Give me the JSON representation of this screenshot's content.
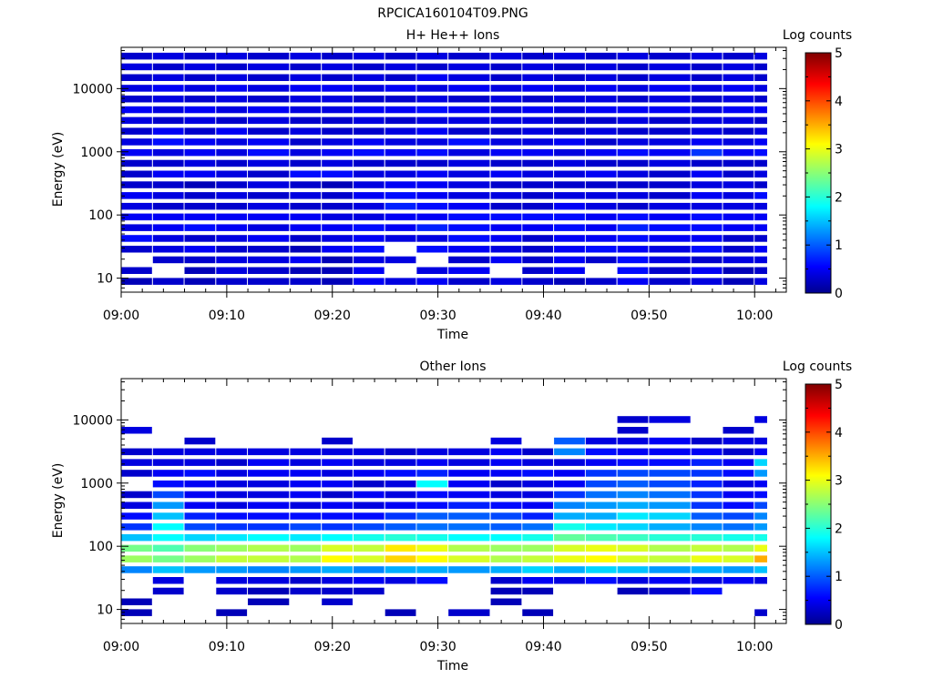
{
  "figure": {
    "title": "RPCICA160104T09.PNG"
  },
  "chart_data": [
    {
      "type": "heatmap",
      "title": "H+ He++ Ions",
      "xlabel": "Time",
      "ylabel": "Energy (eV)",
      "x_tick_labels": [
        "09:00",
        "09:10",
        "09:20",
        "09:30",
        "09:40",
        "09:50",
        "10:00"
      ],
      "x": [
        "09:00",
        "09:03",
        "09:06",
        "09:09",
        "09:12",
        "09:16",
        "09:19",
        "09:22",
        "09:25",
        "09:28",
        "09:31",
        "09:35",
        "09:38",
        "09:41",
        "09:44",
        "09:47",
        "09:50",
        "09:54",
        "09:57",
        "10:00"
      ],
      "xlim": [
        "09:00",
        "10:03"
      ],
      "y_scale": "log",
      "y_tick_labels": [
        "10",
        "100",
        "1000",
        "10000"
      ],
      "ylim": [
        6,
        45000
      ],
      "energy_bins_eV": [
        8.9,
        13.2,
        19.5,
        28.8,
        42.6,
        63,
        93,
        137,
        203,
        300,
        444,
        656,
        970,
        1434,
        2119,
        3132,
        4630,
        6844,
        10117,
        14955,
        22107,
        32679
      ],
      "colorbar": {
        "label": "Log counts",
        "range": [
          0,
          5
        ],
        "tick_labels": [
          "0",
          "1",
          "2",
          "3",
          "4",
          "5"
        ]
      },
      "log_counts_matrix": [
        [
          0.2,
          0.3,
          0.2,
          0.3,
          0.3,
          0.3,
          0.2,
          0.5,
          0.4,
          0.5,
          0.3,
          0.4,
          0.3,
          0.2,
          0.3,
          0.5,
          0.3,
          0.4,
          0.2,
          0.4
        ],
        [
          0.3,
          null,
          0.2,
          0.4,
          0.3,
          0.2,
          0.2,
          0.5,
          null,
          0.4,
          0.5,
          null,
          0.3,
          0.5,
          null,
          0.6,
          0.3,
          0.5,
          0.2,
          0.3
        ],
        [
          null,
          0.3,
          0.3,
          0.4,
          0.4,
          0.5,
          0.2,
          0.4,
          0.4,
          null,
          0.3,
          0.5,
          0.3,
          0.5,
          0.3,
          0.6,
          0.4,
          0.3,
          0.4,
          0.4
        ],
        [
          0.3,
          0.4,
          0.5,
          0.3,
          0.3,
          0.2,
          0.5,
          0.6,
          null,
          0.6,
          0.5,
          0.4,
          0.3,
          0.5,
          0.6,
          0.5,
          0.4,
          0.6,
          0.3,
          0.5
        ],
        [
          0.6,
          0.4,
          0.3,
          0.4,
          0.5,
          0.3,
          0.4,
          0.5,
          0.4,
          0.4,
          0.6,
          0.5,
          0.3,
          0.5,
          0.5,
          0.6,
          0.5,
          0.5,
          0.3,
          0.3
        ],
        [
          0.4,
          0.5,
          0.6,
          0.5,
          0.4,
          0.5,
          0.5,
          0.6,
          0.5,
          0.7,
          0.6,
          0.5,
          0.5,
          0.6,
          0.5,
          0.7,
          0.6,
          0.6,
          0.5,
          0.5
        ],
        [
          0.5,
          0.5,
          0.5,
          0.5,
          0.5,
          0.5,
          0.4,
          0.4,
          0.5,
          0.5,
          0.6,
          0.6,
          0.6,
          0.6,
          0.5,
          0.6,
          0.5,
          0.6,
          0.5,
          0.5
        ],
        [
          0.4,
          0.3,
          0.3,
          0.3,
          0.4,
          0.3,
          0.3,
          0.4,
          0.7,
          0.6,
          0.5,
          0.3,
          0.3,
          0.5,
          0.4,
          0.3,
          0.4,
          0.4,
          0.4,
          0.4
        ],
        [
          0.5,
          0.4,
          0.3,
          0.4,
          0.3,
          0.4,
          0.3,
          0.5,
          0.6,
          0.5,
          0.4,
          0.4,
          0.3,
          0.4,
          0.4,
          0.4,
          0.3,
          0.5,
          0.4,
          0.6
        ],
        [
          0.3,
          0.3,
          0.2,
          0.3,
          0.4,
          0.3,
          0.2,
          0.4,
          0.5,
          0.5,
          0.4,
          0.3,
          0.3,
          0.3,
          0.3,
          0.3,
          0.3,
          0.4,
          0.4,
          0.3
        ],
        [
          0.3,
          0.5,
          0.5,
          0.4,
          0.3,
          0.6,
          0.6,
          0.4,
          0.4,
          0.5,
          0.4,
          0.5,
          0.4,
          0.4,
          0.5,
          0.4,
          0.3,
          0.5,
          0.3,
          0.4
        ],
        [
          0.3,
          0.3,
          0.4,
          0.3,
          0.4,
          0.3,
          0.4,
          0.3,
          0.3,
          0.3,
          0.4,
          0.3,
          0.3,
          0.4,
          0.3,
          0.3,
          0.4,
          0.3,
          0.3,
          0.3
        ],
        [
          0.5,
          0.4,
          0.5,
          0.4,
          0.6,
          0.4,
          0.5,
          0.6,
          0.5,
          0.6,
          0.4,
          0.5,
          0.5,
          0.4,
          0.5,
          0.6,
          0.5,
          0.8,
          0.5,
          0.6
        ],
        [
          0.4,
          0.6,
          0.5,
          0.4,
          0.5,
          0.3,
          0.4,
          0.5,
          0.4,
          0.4,
          0.6,
          0.4,
          0.4,
          0.5,
          0.3,
          0.4,
          0.4,
          0.5,
          0.4,
          0.5
        ],
        [
          0.3,
          0.5,
          0.3,
          0.5,
          0.3,
          0.4,
          0.3,
          0.3,
          0.4,
          0.5,
          0.3,
          0.3,
          0.4,
          0.3,
          0.4,
          0.3,
          0.3,
          0.4,
          0.3,
          0.4
        ],
        [
          0.4,
          0.3,
          0.4,
          0.3,
          0.4,
          0.3,
          0.3,
          0.4,
          0.3,
          0.4,
          0.4,
          0.4,
          0.4,
          0.3,
          0.3,
          0.4,
          0.3,
          0.4,
          0.4,
          0.3
        ],
        [
          0.5,
          0.4,
          0.5,
          0.4,
          0.5,
          0.4,
          0.4,
          0.5,
          0.5,
          0.6,
          0.5,
          0.4,
          0.5,
          0.4,
          0.5,
          0.5,
          0.5,
          0.4,
          0.5,
          0.5
        ],
        [
          0.3,
          0.4,
          0.3,
          0.4,
          0.3,
          0.4,
          0.4,
          0.3,
          0.3,
          0.4,
          0.3,
          0.4,
          0.3,
          0.4,
          0.4,
          0.3,
          0.4,
          0.3,
          0.4,
          0.3
        ],
        [
          0.4,
          0.5,
          0.4,
          0.5,
          0.4,
          0.5,
          0.5,
          0.4,
          0.5,
          0.4,
          0.5,
          0.4,
          0.5,
          0.4,
          0.5,
          0.4,
          0.5,
          0.4,
          0.5,
          0.4
        ],
        [
          0.3,
          0.4,
          0.3,
          0.4,
          0.3,
          0.4,
          0.3,
          0.4,
          0.3,
          0.5,
          0.4,
          0.3,
          0.4,
          0.3,
          0.4,
          0.3,
          0.4,
          0.3,
          0.4,
          0.3
        ],
        [
          0.4,
          0.3,
          0.4,
          0.3,
          0.4,
          0.3,
          0.4,
          0.3,
          0.4,
          0.3,
          0.4,
          0.3,
          0.4,
          0.3,
          0.4,
          0.3,
          0.4,
          0.3,
          0.4,
          0.3
        ],
        [
          0.3,
          0.4,
          0.3,
          0.4,
          0.3,
          0.4,
          0.3,
          0.4,
          0.3,
          0.4,
          0.3,
          0.4,
          0.3,
          0.4,
          0.3,
          0.4,
          0.3,
          0.4,
          0.3,
          0.4
        ]
      ]
    },
    {
      "type": "heatmap",
      "title": "Other Ions",
      "xlabel": "Time",
      "ylabel": "Energy (eV)",
      "x_tick_labels": [
        "09:00",
        "09:10",
        "09:20",
        "09:30",
        "09:40",
        "09:50",
        "10:00"
      ],
      "x": [
        "09:00",
        "09:03",
        "09:06",
        "09:09",
        "09:12",
        "09:16",
        "09:19",
        "09:22",
        "09:25",
        "09:28",
        "09:31",
        "09:35",
        "09:38",
        "09:41",
        "09:44",
        "09:47",
        "09:50",
        "09:54",
        "09:57",
        "10:00"
      ],
      "xlim": [
        "09:00",
        "10:03"
      ],
      "y_scale": "log",
      "y_tick_labels": [
        "10",
        "100",
        "1000",
        "10000"
      ],
      "ylim": [
        6,
        45000
      ],
      "energy_bins_eV": [
        8.9,
        13.2,
        19.5,
        28.8,
        42.6,
        63,
        93,
        137,
        203,
        300,
        444,
        656,
        970,
        1434,
        2119,
        3132,
        4630,
        6844,
        10117,
        14955,
        22107,
        32679
      ],
      "colorbar": {
        "label": "Log counts",
        "range": [
          0,
          5
        ],
        "tick_labels": [
          "0",
          "1",
          "2",
          "3",
          "4",
          "5"
        ]
      },
      "log_counts_matrix": [
        [
          0.2,
          null,
          null,
          0.2,
          null,
          null,
          null,
          null,
          0.2,
          null,
          0.3,
          null,
          0.2,
          null,
          null,
          null,
          null,
          null,
          null,
          0.3
        ],
        [
          0.2,
          null,
          null,
          null,
          0.2,
          null,
          0.3,
          null,
          null,
          null,
          null,
          0.2,
          null,
          null,
          null,
          null,
          null,
          null,
          null,
          null
        ],
        [
          null,
          0.3,
          null,
          0.3,
          0.2,
          0.3,
          0.3,
          0.3,
          null,
          null,
          null,
          0.2,
          0.2,
          null,
          null,
          0.2,
          0.3,
          0.6,
          null,
          null
        ],
        [
          null,
          0.4,
          null,
          0.4,
          0.4,
          0.3,
          0.4,
          0.5,
          0.4,
          0.6,
          null,
          0.3,
          0.5,
          0.4,
          0.6,
          0.4,
          0.5,
          0.4,
          0.5,
          0.4
        ],
        [
          1.2,
          1.5,
          1.3,
          1.3,
          1.2,
          1.3,
          1.4,
          1.2,
          1.4,
          1.4,
          1.3,
          1.4,
          1.6,
          1.4,
          1.6,
          1.5,
          1.3,
          1.4,
          1.3,
          1.5
        ],
        [
          2.6,
          2.4,
          2.6,
          2.8,
          2.8,
          2.7,
          3.1,
          2.9,
          3.3,
          3.1,
          2.9,
          2.7,
          2.8,
          3.0,
          3.1,
          2.9,
          2.8,
          3.0,
          2.9,
          3.5
        ],
        [
          2.4,
          2.2,
          2.5,
          2.6,
          2.7,
          2.6,
          2.9,
          2.8,
          3.2,
          3.0,
          2.7,
          2.6,
          2.6,
          2.9,
          3.0,
          2.9,
          2.7,
          2.8,
          2.7,
          3.0
        ],
        [
          1.5,
          1.8,
          1.6,
          1.7,
          1.8,
          1.7,
          1.8,
          1.9,
          2.0,
          1.9,
          1.8,
          1.8,
          1.9,
          2.3,
          2.2,
          2.1,
          2.0,
          2.0,
          1.9,
          1.9
        ],
        [
          0.8,
          1.8,
          0.9,
          0.8,
          0.8,
          0.9,
          0.8,
          0.9,
          1.0,
          1.1,
          1.1,
          1.0,
          1.1,
          1.9,
          1.7,
          1.6,
          1.4,
          1.2,
          1.1,
          1.3
        ],
        [
          0.6,
          1.5,
          0.7,
          0.6,
          0.6,
          0.6,
          0.6,
          0.6,
          0.8,
          1.0,
          1.0,
          0.9,
          0.7,
          1.4,
          1.4,
          1.7,
          1.6,
          1.0,
          0.9,
          1.2
        ],
        [
          0.4,
          1.3,
          0.5,
          0.4,
          0.5,
          0.4,
          0.5,
          0.4,
          0.5,
          0.6,
          0.7,
          0.6,
          0.5,
          1.2,
          1.3,
          1.4,
          1.3,
          0.8,
          0.6,
          0.9
        ],
        [
          0.3,
          0.9,
          0.5,
          0.4,
          0.4,
          0.5,
          0.3,
          0.5,
          0.4,
          0.6,
          0.5,
          0.4,
          0.4,
          0.8,
          1.1,
          1.2,
          1.1,
          0.8,
          0.5,
          0.6
        ],
        [
          null,
          0.6,
          0.5,
          0.4,
          0.4,
          0.5,
          0.5,
          0.3,
          0.4,
          1.8,
          0.5,
          0.3,
          0.4,
          0.5,
          0.9,
          1.0,
          0.9,
          0.7,
          0.4,
          0.5
        ],
        [
          0.3,
          0.5,
          0.6,
          0.4,
          0.5,
          0.5,
          0.4,
          0.5,
          0.6,
          0.7,
          0.5,
          0.5,
          0.6,
          0.5,
          0.8,
          0.9,
          0.9,
          0.8,
          0.6,
          1.3
        ],
        [
          0.4,
          0.4,
          0.4,
          0.3,
          0.5,
          0.4,
          0.5,
          0.4,
          0.4,
          0.5,
          0.4,
          0.5,
          0.4,
          0.4,
          0.5,
          0.6,
          0.6,
          0.7,
          0.5,
          1.6
        ],
        [
          0.3,
          0.4,
          0.4,
          0.4,
          0.4,
          0.4,
          0.4,
          0.4,
          0.3,
          0.4,
          0.4,
          0.5,
          0.3,
          1.2,
          0.6,
          0.5,
          0.5,
          0.5,
          0.3,
          0.5
        ],
        [
          null,
          null,
          0.3,
          null,
          null,
          null,
          0.3,
          null,
          null,
          null,
          null,
          0.4,
          null,
          1.0,
          0.4,
          0.4,
          0.5,
          0.3,
          0.4,
          0.4
        ],
        [
          0.4,
          null,
          null,
          null,
          null,
          null,
          null,
          null,
          null,
          null,
          null,
          null,
          null,
          null,
          null,
          0.3,
          null,
          null,
          0.3,
          null
        ],
        [
          null,
          null,
          null,
          null,
          null,
          null,
          null,
          null,
          null,
          null,
          null,
          null,
          null,
          null,
          null,
          0.3,
          0.4,
          null,
          null,
          0.4
        ],
        [
          null,
          null,
          null,
          null,
          null,
          null,
          null,
          null,
          null,
          null,
          null,
          null,
          null,
          null,
          null,
          null,
          null,
          null,
          null,
          null
        ],
        [
          null,
          null,
          null,
          null,
          null,
          null,
          null,
          null,
          null,
          null,
          null,
          null,
          null,
          null,
          null,
          null,
          null,
          null,
          null,
          null
        ],
        [
          null,
          null,
          null,
          null,
          null,
          null,
          null,
          null,
          null,
          null,
          null,
          null,
          null,
          null,
          null,
          null,
          null,
          null,
          null,
          null
        ]
      ]
    }
  ]
}
